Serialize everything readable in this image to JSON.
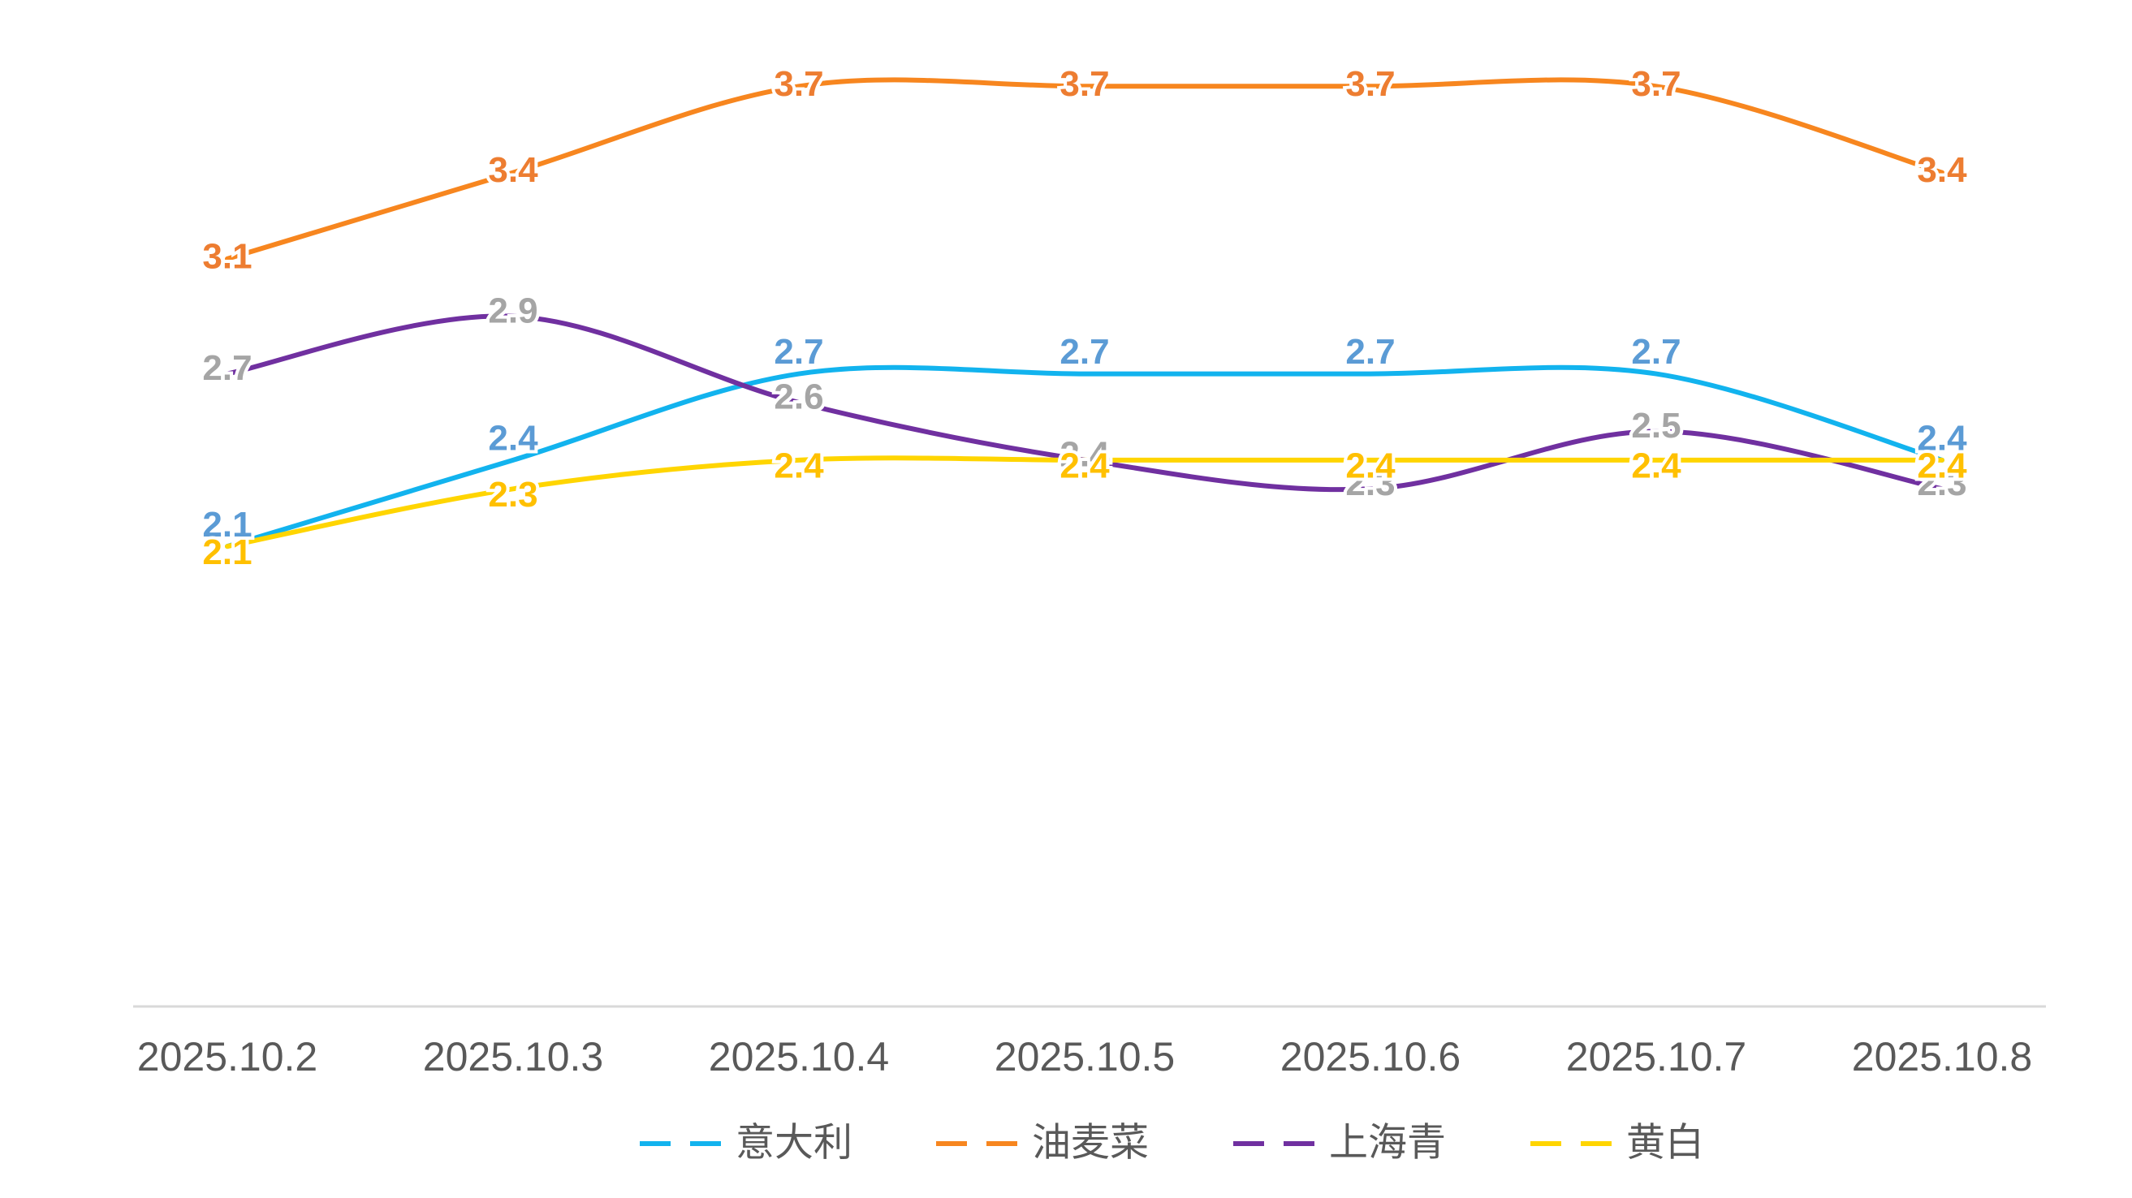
{
  "chart_data": {
    "type": "line",
    "smooth": true,
    "categories": [
      "2025.10.2",
      "2025.10.3",
      "2025.10.4",
      "2025.10.5",
      "2025.10.6",
      "2025.10.7",
      "2025.10.8"
    ],
    "ylim": [
      0.5,
      4.0
    ],
    "legend": "bottom",
    "series": [
      {
        "name": "意大利",
        "color": "#12b3ee",
        "label_color": "#5b9bd5",
        "values": [
          2.1,
          2.4,
          2.7,
          2.7,
          2.7,
          2.7,
          2.4
        ]
      },
      {
        "name": "油麦菜",
        "color": "#f7861f",
        "label_color": "#ed7d31",
        "values": [
          3.1,
          3.4,
          3.7,
          3.7,
          3.7,
          3.7,
          3.4
        ]
      },
      {
        "name": "上海青",
        "color": "#7030a0",
        "label_color": "#a5a5a5",
        "values": [
          2.7,
          2.9,
          2.6,
          2.4,
          2.3,
          2.5,
          2.3
        ]
      },
      {
        "name": "黄白",
        "color": "#ffd500",
        "label_color": "#ffc000",
        "values": [
          2.1,
          2.3,
          2.4,
          2.4,
          2.4,
          2.4,
          2.4
        ]
      }
    ]
  }
}
